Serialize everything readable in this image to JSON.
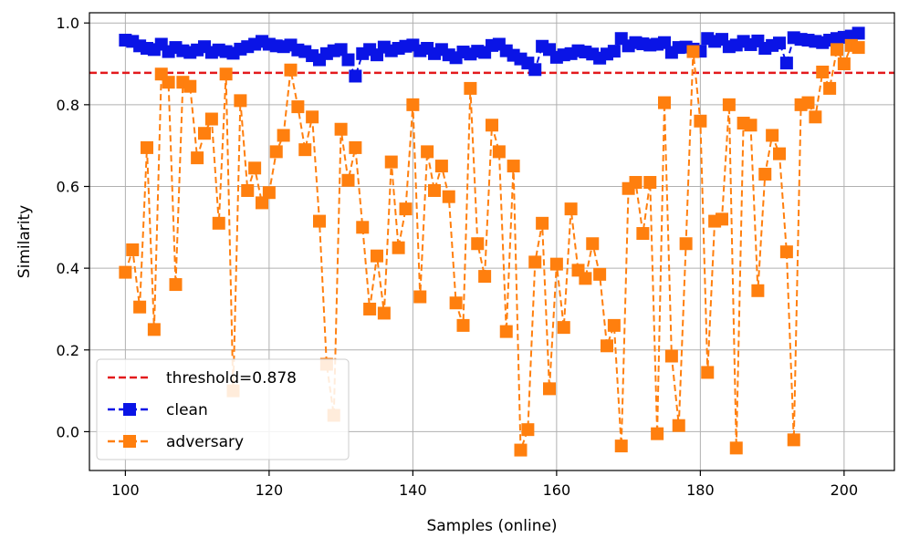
{
  "chart_data": {
    "type": "line",
    "xlabel": "Samples (online)",
    "ylabel": "Similarity",
    "xlim": [
      95,
      207
    ],
    "ylim": [
      -0.095,
      1.025
    ],
    "xticks": [
      100,
      120,
      140,
      160,
      180,
      200
    ],
    "yticks": [
      0.0,
      0.2,
      0.4,
      0.6,
      0.8,
      1.0
    ],
    "xtick_labels": [
      "100",
      "120",
      "140",
      "160",
      "180",
      "200"
    ],
    "ytick_labels": [
      "0.0",
      "0.2",
      "0.4",
      "0.6",
      "0.8",
      "1.0"
    ],
    "grid": true,
    "legend_position": "lower-left",
    "threshold": {
      "name": "threshold=0.878",
      "value": 0.878,
      "color": "#e31a1c",
      "style": "dashed"
    },
    "series": [
      {
        "name": "clean",
        "color": "#0a14e6",
        "marker": "square",
        "style": "dashed",
        "x_start": 100,
        "values": [
          0.958,
          0.955,
          0.944,
          0.938,
          0.935,
          0.948,
          0.93,
          0.94,
          0.932,
          0.928,
          0.934,
          0.942,
          0.928,
          0.934,
          0.93,
          0.926,
          0.936,
          0.942,
          0.948,
          0.955,
          0.948,
          0.944,
          0.942,
          0.946,
          0.934,
          0.93,
          0.92,
          0.91,
          0.925,
          0.932,
          0.935,
          0.91,
          0.87,
          0.925,
          0.935,
          0.922,
          0.941,
          0.932,
          0.938,
          0.943,
          0.946,
          0.932,
          0.938,
          0.925,
          0.935,
          0.922,
          0.915,
          0.929,
          0.924,
          0.931,
          0.928,
          0.945,
          0.948,
          0.932,
          0.921,
          0.912,
          0.902,
          0.886,
          0.943,
          0.935,
          0.916,
          0.922,
          0.925,
          0.932,
          0.929,
          0.924,
          0.914,
          0.924,
          0.931,
          0.962,
          0.944,
          0.952,
          0.949,
          0.946,
          0.948,
          0.952,
          0.928,
          0.94,
          0.941,
          0.936,
          0.931,
          0.962,
          0.955,
          0.96,
          0.942,
          0.946,
          0.955,
          0.947,
          0.956,
          0.938,
          0.945,
          0.951,
          0.902,
          0.964,
          0.96,
          0.958,
          0.955,
          0.952,
          0.958,
          0.962,
          0.965,
          0.968,
          0.975
        ]
      },
      {
        "name": "adversary",
        "color": "#ff7f0e",
        "marker": "square",
        "style": "dashed",
        "x_start": 100,
        "values": [
          0.39,
          0.445,
          0.305,
          0.695,
          0.25,
          0.875,
          0.855,
          0.36,
          0.855,
          0.845,
          0.67,
          0.73,
          0.765,
          0.51,
          0.875,
          0.1,
          0.81,
          0.59,
          0.645,
          0.56,
          0.585,
          0.685,
          0.725,
          0.885,
          0.795,
          0.69,
          0.77,
          0.515,
          0.165,
          0.04,
          0.74,
          0.615,
          0.695,
          0.5,
          0.3,
          0.43,
          0.29,
          0.66,
          0.45,
          0.545,
          0.8,
          0.33,
          0.685,
          0.59,
          0.65,
          0.575,
          0.315,
          0.26,
          0.84,
          0.46,
          0.38,
          0.75,
          0.685,
          0.245,
          0.65,
          -0.045,
          0.005,
          0.415,
          0.51,
          0.105,
          0.41,
          0.255,
          0.545,
          0.395,
          0.375,
          0.46,
          0.385,
          0.21,
          0.26,
          -0.035,
          0.595,
          0.61,
          0.485,
          0.61,
          -0.005,
          0.805,
          0.185,
          0.015,
          0.46,
          0.93,
          0.76,
          0.145,
          0.515,
          0.52,
          0.8,
          -0.04,
          0.755,
          0.75,
          0.345,
          0.63,
          0.725,
          0.68,
          0.44,
          -0.02,
          0.8,
          0.805,
          0.77,
          0.88,
          0.84,
          0.935,
          0.9,
          0.945,
          0.94
        ]
      }
    ]
  }
}
